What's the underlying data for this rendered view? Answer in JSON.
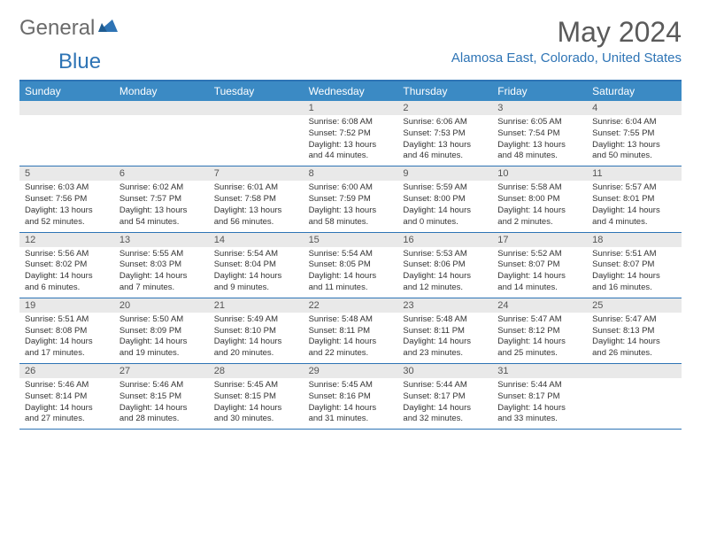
{
  "logo": {
    "general": "General",
    "blue": "Blue"
  },
  "title": "May 2024",
  "location": "Alamosa East, Colorado, United States",
  "colors": {
    "header_blue": "#3b8ac4",
    "border_blue": "#2e74b5",
    "daynum_bg": "#e9e9e9",
    "logo_gray": "#6b6b6b",
    "logo_blue": "#2e74b5",
    "text": "#333333",
    "title_gray": "#5a5a5a"
  },
  "day_headers": [
    "Sunday",
    "Monday",
    "Tuesday",
    "Wednesday",
    "Thursday",
    "Friday",
    "Saturday"
  ],
  "weeks": [
    [
      {
        "n": "",
        "sr": "",
        "ss": "",
        "dl": ""
      },
      {
        "n": "",
        "sr": "",
        "ss": "",
        "dl": ""
      },
      {
        "n": "",
        "sr": "",
        "ss": "",
        "dl": ""
      },
      {
        "n": "1",
        "sr": "Sunrise: 6:08 AM",
        "ss": "Sunset: 7:52 PM",
        "dl": "Daylight: 13 hours and 44 minutes."
      },
      {
        "n": "2",
        "sr": "Sunrise: 6:06 AM",
        "ss": "Sunset: 7:53 PM",
        "dl": "Daylight: 13 hours and 46 minutes."
      },
      {
        "n": "3",
        "sr": "Sunrise: 6:05 AM",
        "ss": "Sunset: 7:54 PM",
        "dl": "Daylight: 13 hours and 48 minutes."
      },
      {
        "n": "4",
        "sr": "Sunrise: 6:04 AM",
        "ss": "Sunset: 7:55 PM",
        "dl": "Daylight: 13 hours and 50 minutes."
      }
    ],
    [
      {
        "n": "5",
        "sr": "Sunrise: 6:03 AM",
        "ss": "Sunset: 7:56 PM",
        "dl": "Daylight: 13 hours and 52 minutes."
      },
      {
        "n": "6",
        "sr": "Sunrise: 6:02 AM",
        "ss": "Sunset: 7:57 PM",
        "dl": "Daylight: 13 hours and 54 minutes."
      },
      {
        "n": "7",
        "sr": "Sunrise: 6:01 AM",
        "ss": "Sunset: 7:58 PM",
        "dl": "Daylight: 13 hours and 56 minutes."
      },
      {
        "n": "8",
        "sr": "Sunrise: 6:00 AM",
        "ss": "Sunset: 7:59 PM",
        "dl": "Daylight: 13 hours and 58 minutes."
      },
      {
        "n": "9",
        "sr": "Sunrise: 5:59 AM",
        "ss": "Sunset: 8:00 PM",
        "dl": "Daylight: 14 hours and 0 minutes."
      },
      {
        "n": "10",
        "sr": "Sunrise: 5:58 AM",
        "ss": "Sunset: 8:00 PM",
        "dl": "Daylight: 14 hours and 2 minutes."
      },
      {
        "n": "11",
        "sr": "Sunrise: 5:57 AM",
        "ss": "Sunset: 8:01 PM",
        "dl": "Daylight: 14 hours and 4 minutes."
      }
    ],
    [
      {
        "n": "12",
        "sr": "Sunrise: 5:56 AM",
        "ss": "Sunset: 8:02 PM",
        "dl": "Daylight: 14 hours and 6 minutes."
      },
      {
        "n": "13",
        "sr": "Sunrise: 5:55 AM",
        "ss": "Sunset: 8:03 PM",
        "dl": "Daylight: 14 hours and 7 minutes."
      },
      {
        "n": "14",
        "sr": "Sunrise: 5:54 AM",
        "ss": "Sunset: 8:04 PM",
        "dl": "Daylight: 14 hours and 9 minutes."
      },
      {
        "n": "15",
        "sr": "Sunrise: 5:54 AM",
        "ss": "Sunset: 8:05 PM",
        "dl": "Daylight: 14 hours and 11 minutes."
      },
      {
        "n": "16",
        "sr": "Sunrise: 5:53 AM",
        "ss": "Sunset: 8:06 PM",
        "dl": "Daylight: 14 hours and 12 minutes."
      },
      {
        "n": "17",
        "sr": "Sunrise: 5:52 AM",
        "ss": "Sunset: 8:07 PM",
        "dl": "Daylight: 14 hours and 14 minutes."
      },
      {
        "n": "18",
        "sr": "Sunrise: 5:51 AM",
        "ss": "Sunset: 8:07 PM",
        "dl": "Daylight: 14 hours and 16 minutes."
      }
    ],
    [
      {
        "n": "19",
        "sr": "Sunrise: 5:51 AM",
        "ss": "Sunset: 8:08 PM",
        "dl": "Daylight: 14 hours and 17 minutes."
      },
      {
        "n": "20",
        "sr": "Sunrise: 5:50 AM",
        "ss": "Sunset: 8:09 PM",
        "dl": "Daylight: 14 hours and 19 minutes."
      },
      {
        "n": "21",
        "sr": "Sunrise: 5:49 AM",
        "ss": "Sunset: 8:10 PM",
        "dl": "Daylight: 14 hours and 20 minutes."
      },
      {
        "n": "22",
        "sr": "Sunrise: 5:48 AM",
        "ss": "Sunset: 8:11 PM",
        "dl": "Daylight: 14 hours and 22 minutes."
      },
      {
        "n": "23",
        "sr": "Sunrise: 5:48 AM",
        "ss": "Sunset: 8:11 PM",
        "dl": "Daylight: 14 hours and 23 minutes."
      },
      {
        "n": "24",
        "sr": "Sunrise: 5:47 AM",
        "ss": "Sunset: 8:12 PM",
        "dl": "Daylight: 14 hours and 25 minutes."
      },
      {
        "n": "25",
        "sr": "Sunrise: 5:47 AM",
        "ss": "Sunset: 8:13 PM",
        "dl": "Daylight: 14 hours and 26 minutes."
      }
    ],
    [
      {
        "n": "26",
        "sr": "Sunrise: 5:46 AM",
        "ss": "Sunset: 8:14 PM",
        "dl": "Daylight: 14 hours and 27 minutes."
      },
      {
        "n": "27",
        "sr": "Sunrise: 5:46 AM",
        "ss": "Sunset: 8:15 PM",
        "dl": "Daylight: 14 hours and 28 minutes."
      },
      {
        "n": "28",
        "sr": "Sunrise: 5:45 AM",
        "ss": "Sunset: 8:15 PM",
        "dl": "Daylight: 14 hours and 30 minutes."
      },
      {
        "n": "29",
        "sr": "Sunrise: 5:45 AM",
        "ss": "Sunset: 8:16 PM",
        "dl": "Daylight: 14 hours and 31 minutes."
      },
      {
        "n": "30",
        "sr": "Sunrise: 5:44 AM",
        "ss": "Sunset: 8:17 PM",
        "dl": "Daylight: 14 hours and 32 minutes."
      },
      {
        "n": "31",
        "sr": "Sunrise: 5:44 AM",
        "ss": "Sunset: 8:17 PM",
        "dl": "Daylight: 14 hours and 33 minutes."
      },
      {
        "n": "",
        "sr": "",
        "ss": "",
        "dl": ""
      }
    ]
  ]
}
